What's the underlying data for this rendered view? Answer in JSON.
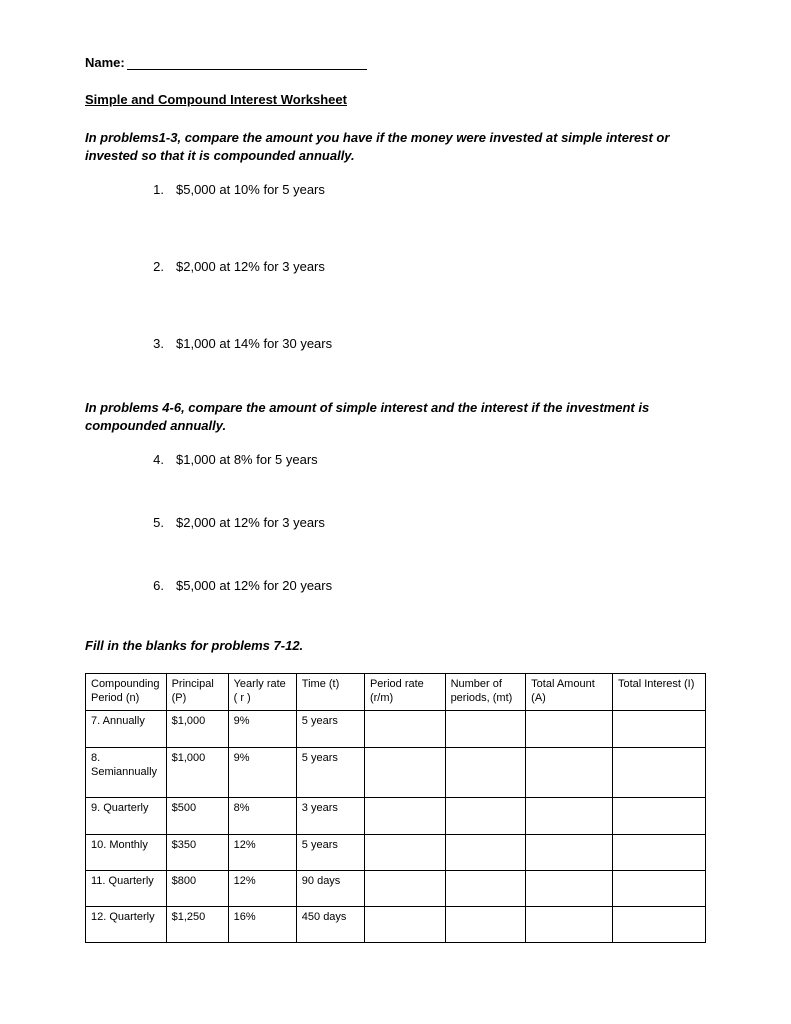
{
  "header": {
    "name_label": "Name:",
    "title": "Simple and Compound Interest Worksheet"
  },
  "section1": {
    "instructions": "In problems1-3, compare the amount you have if the money were invested at simple interest or invested so that it is compounded annually.",
    "items": [
      {
        "num": "1.",
        "text": "$5,000 at 10% for 5 years"
      },
      {
        "num": "2.",
        "text": "$2,000 at 12% for 3 years"
      },
      {
        "num": "3.",
        "text": "$1,000 at 14% for 30 years"
      }
    ]
  },
  "section2": {
    "instructions": "In problems 4-6, compare the amount of simple interest and the interest if the investment is compounded annually.",
    "items": [
      {
        "num": "4.",
        "text": "$1,000 at 8% for 5 years"
      },
      {
        "num": "5.",
        "text": "$2,000 at 12% for 3 years"
      },
      {
        "num": "6.",
        "text": "$5,000 at 12% for 20 years"
      }
    ]
  },
  "section3": {
    "instructions": "Fill in the blanks for problems 7-12.",
    "columns": [
      "Compounding Period (n)",
      "Principal (P)",
      "Yearly rate ( r )",
      "Time (t)",
      "Period rate (r/m)",
      "Number of periods, (mt)",
      "Total Amount (A)",
      "Total Interest (I)"
    ],
    "rows": [
      {
        "c0": "7.  Annually",
        "c1": "$1,000",
        "c2": "9%",
        "c3": "5 years",
        "c4": "",
        "c5": "",
        "c6": "",
        "c7": ""
      },
      {
        "c0": "8.  Semiannually",
        "c1": "$1,000",
        "c2": "9%",
        "c3": "5 years",
        "c4": "",
        "c5": "",
        "c6": "",
        "c7": ""
      },
      {
        "c0": "9.  Quarterly",
        "c1": "$500",
        "c2": "8%",
        "c3": "3 years",
        "c4": "",
        "c5": "",
        "c6": "",
        "c7": ""
      },
      {
        "c0": "10.  Monthly",
        "c1": "$350",
        "c2": "12%",
        "c3": "5 years",
        "c4": "",
        "c5": "",
        "c6": "",
        "c7": ""
      },
      {
        "c0": "11.  Quarterly",
        "c1": "$800",
        "c2": "12%",
        "c3": "90 days",
        "c4": "",
        "c5": "",
        "c6": "",
        "c7": ""
      },
      {
        "c0": "12.  Quarterly",
        "c1": "$1,250",
        "c2": "16%",
        "c3": "450 days",
        "c4": "",
        "c5": "",
        "c6": "",
        "c7": ""
      }
    ]
  }
}
